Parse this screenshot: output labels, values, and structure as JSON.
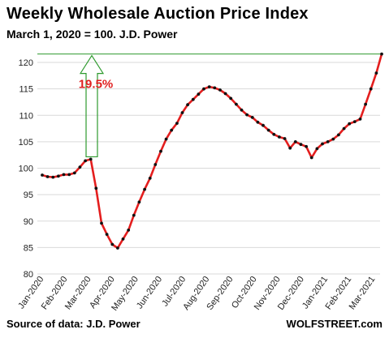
{
  "header": {
    "title": "Weekly Wholesale Auction Price Index",
    "subtitle": "March 1, 2020 = 100. J.D. Power"
  },
  "footer": {
    "source": "Source of data: J.D. Power",
    "brand": "WOLFSTREET.com"
  },
  "colors": {
    "line": "#e41e1e",
    "marker": "#111111",
    "grid": "#d9d9d9",
    "annotation_line": "#2e9a2e",
    "annotation_text": "#e02020"
  },
  "annotation": {
    "text": "19.5%"
  },
  "chart_data": {
    "type": "line",
    "title": "Weekly Wholesale Auction Price Index",
    "subtitle": "March 1, 2020 = 100. J.D. Power",
    "ylim": [
      80,
      122
    ],
    "yticks": [
      80,
      85,
      90,
      95,
      100,
      105,
      110,
      115,
      120
    ],
    "grid": "horizontal",
    "x_tick_labels": [
      "Jan-2020",
      "Feb-2020",
      "Mar-2020",
      "Apr-2020",
      "May-2020",
      "Jun-2020",
      "Jul-2020",
      "Aug-2020",
      "Sep-2020",
      "Oct-2020",
      "Nov-2020",
      "Dec-2020",
      "Jan-2021",
      "Feb-2021",
      "Mar-2021"
    ],
    "series": [
      {
        "values": [
          98.7,
          98.4,
          98.3,
          98.5,
          98.8,
          98.8,
          99.1,
          100.2,
          101.4,
          101.7,
          96.2,
          89.6,
          87.5,
          85.6,
          84.9,
          86.6,
          88.3,
          91.1,
          93.6,
          96.0,
          98.1,
          100.7,
          103.2,
          105.5,
          107.2,
          108.5,
          110.5,
          112.0,
          113.0,
          114.0,
          115.0,
          115.4,
          115.2,
          114.8,
          114.1,
          113.2,
          112.1,
          111.0,
          110.1,
          109.6,
          108.7,
          108.1,
          107.2,
          106.4,
          105.9,
          105.6,
          103.8,
          105.0,
          104.5,
          104.1,
          102.0,
          103.7,
          104.6,
          105.0,
          105.5,
          106.3,
          107.5,
          108.4,
          108.8,
          109.3,
          112.1,
          115.0,
          118.0,
          121.6
        ]
      }
    ],
    "reference_level": 121.6,
    "annotation": {
      "text": "19.5%",
      "from_value": 101.7,
      "to_value": 121.6
    }
  }
}
